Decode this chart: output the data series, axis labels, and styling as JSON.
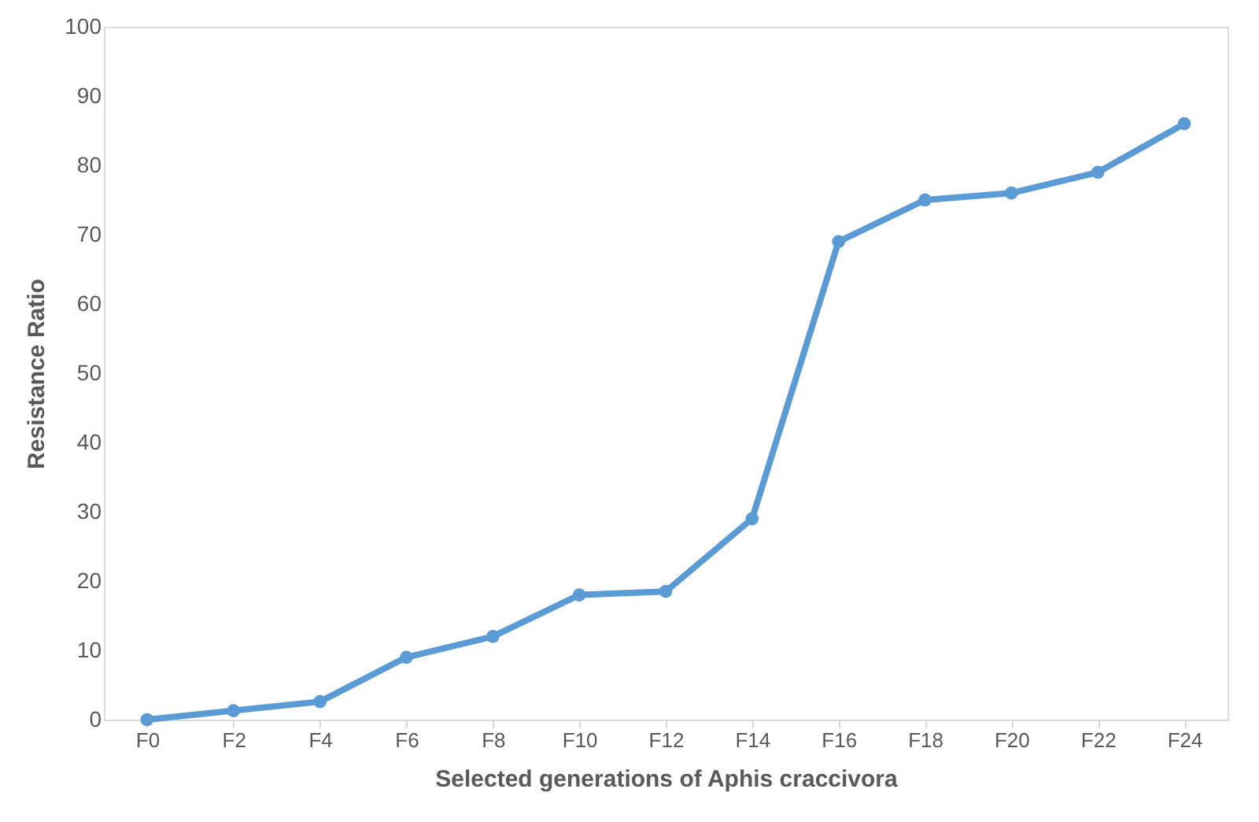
{
  "chart_data": {
    "type": "line",
    "xlabel": "Selected generations of Aphis craccivora",
    "ylabel": "Resistance Ratio",
    "categories": [
      "F0",
      "F2",
      "F4",
      "F6",
      "F8",
      "F10",
      "F12",
      "F14",
      "F16",
      "F18",
      "F20",
      "F22",
      "F24"
    ],
    "series": [
      {
        "color": "#5b9bd5",
        "values": [
          0,
          1.3,
          2.6,
          9,
          12,
          18,
          18.5,
          29,
          69,
          75,
          76,
          79,
          86
        ]
      }
    ],
    "ylim": [
      0,
      100
    ],
    "yticks": [
      0,
      10,
      20,
      30,
      40,
      50,
      60,
      70,
      80,
      90,
      100
    ],
    "grid": false,
    "legend": false,
    "marker": "circle",
    "line_style": "solid"
  }
}
